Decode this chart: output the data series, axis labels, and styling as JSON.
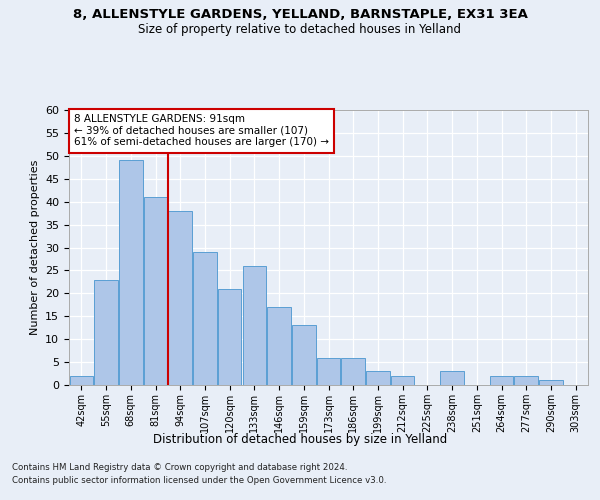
{
  "title1": "8, ALLENSTYLE GARDENS, YELLAND, BARNSTAPLE, EX31 3EA",
  "title2": "Size of property relative to detached houses in Yelland",
  "xlabel": "Distribution of detached houses by size in Yelland",
  "ylabel": "Number of detached properties",
  "categories": [
    "42sqm",
    "55sqm",
    "68sqm",
    "81sqm",
    "94sqm",
    "107sqm",
    "120sqm",
    "133sqm",
    "146sqm",
    "159sqm",
    "173sqm",
    "186sqm",
    "199sqm",
    "212sqm",
    "225sqm",
    "238sqm",
    "251sqm",
    "264sqm",
    "277sqm",
    "290sqm",
    "303sqm"
  ],
  "values": [
    2,
    23,
    49,
    41,
    38,
    29,
    21,
    26,
    17,
    13,
    6,
    6,
    3,
    2,
    0,
    3,
    0,
    2,
    2,
    1,
    0
  ],
  "bar_color": "#aec6e8",
  "bar_edge_color": "#5a9fd4",
  "vline_index": 3,
  "annotation_text": "8 ALLENSTYLE GARDENS: 91sqm\n← 39% of detached houses are smaller (107)\n61% of semi-detached houses are larger (170) →",
  "annotation_box_color": "#ffffff",
  "annotation_box_edge": "#cc0000",
  "vline_color": "#cc0000",
  "ylim": [
    0,
    60
  ],
  "yticks": [
    0,
    5,
    10,
    15,
    20,
    25,
    30,
    35,
    40,
    45,
    50,
    55,
    60
  ],
  "footer1": "Contains HM Land Registry data © Crown copyright and database right 2024.",
  "footer2": "Contains public sector information licensed under the Open Government Licence v3.0.",
  "bg_color": "#e8eef7",
  "plot_bg": "#e8eef7",
  "grid_color": "#ffffff"
}
